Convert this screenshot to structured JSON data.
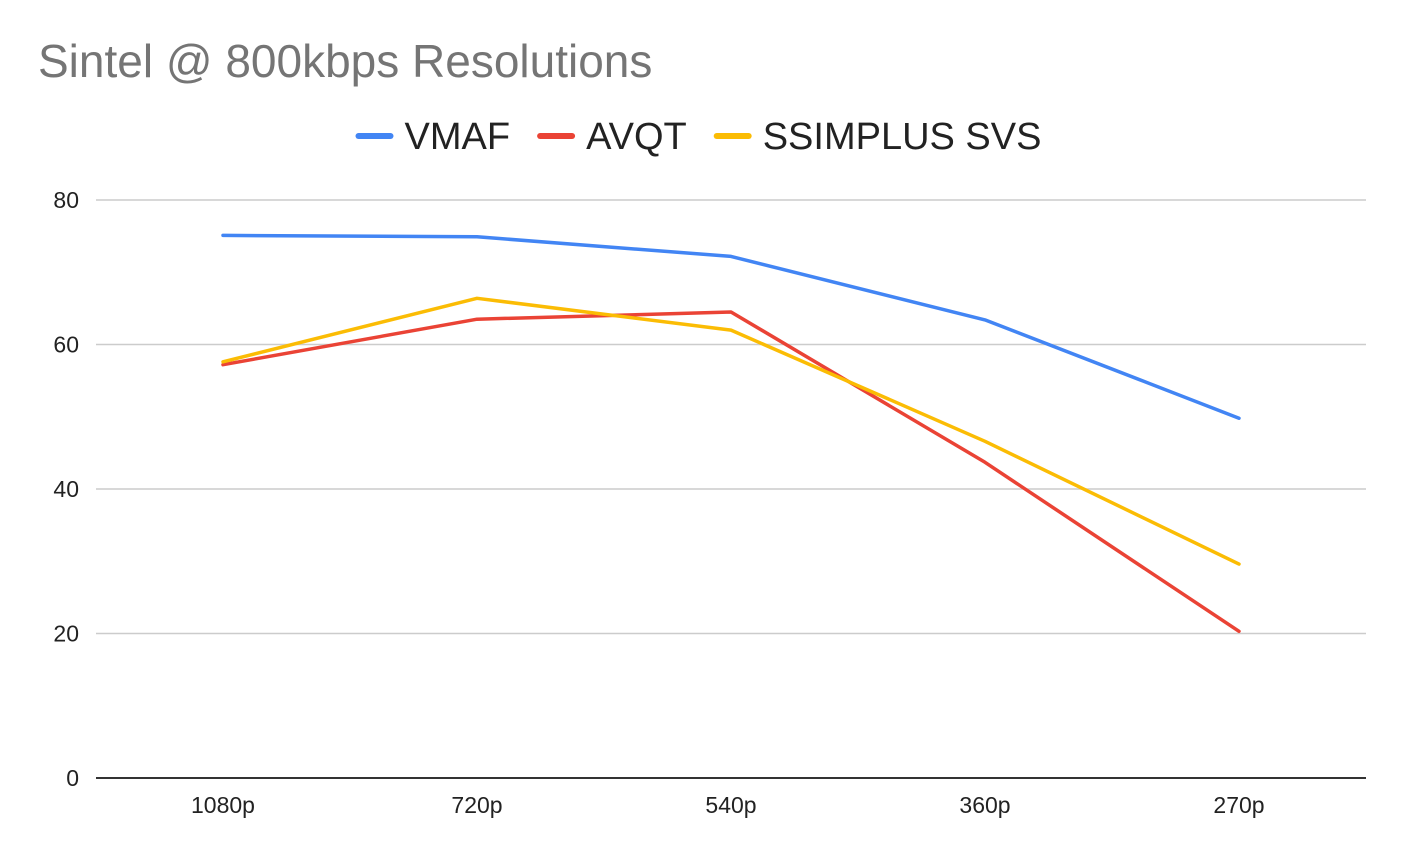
{
  "chart_data": {
    "type": "line",
    "title": "Sintel @ 800kbps Resolutions",
    "xlabel": "",
    "ylabel": "",
    "categories": [
      "1080p",
      "720p",
      "540p",
      "360p",
      "270p"
    ],
    "ylim": [
      0,
      80
    ],
    "yticks": [
      0,
      20,
      40,
      60,
      80
    ],
    "grid": true,
    "legend_position": "top",
    "series": [
      {
        "name": "VMAF",
        "color": "#4285f4",
        "values": [
          75.1,
          74.9,
          72.2,
          63.4,
          49.8
        ]
      },
      {
        "name": "AVQT",
        "color": "#ea4335",
        "values": [
          57.2,
          63.5,
          64.5,
          43.7,
          20.3
        ]
      },
      {
        "name": "SSIMPLUS SVS",
        "color": "#fbbc04",
        "values": [
          57.6,
          66.4,
          62.0,
          46.6,
          29.6
        ]
      }
    ]
  }
}
